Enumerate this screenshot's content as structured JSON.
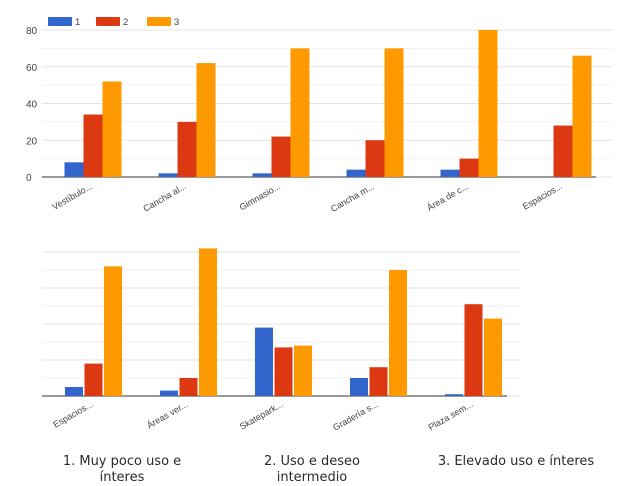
{
  "chart_data": [
    {
      "type": "bar",
      "categories": [
        "Vestíbulo...",
        "Cancha al...",
        "Gimnasio...",
        "Cancha m...",
        "Área de c...",
        "Espacios..."
      ],
      "series": [
        {
          "name": "1",
          "color": "#3366cc",
          "values": [
            8,
            2,
            2,
            4,
            4,
            0
          ]
        },
        {
          "name": "2",
          "color": "#dc3912",
          "values": [
            34,
            30,
            22,
            20,
            10,
            28
          ]
        },
        {
          "name": "3",
          "color": "#ff9900",
          "values": [
            52,
            62,
            70,
            70,
            80,
            66
          ]
        }
      ],
      "ylim": [
        0,
        80
      ],
      "yticks": [
        0,
        20,
        40,
        60,
        80
      ],
      "grid": true,
      "legend": "top-left"
    },
    {
      "type": "bar",
      "categories": [
        "Espacios...",
        "Áreas ver...",
        "Skatepark...",
        "Gradería s...",
        "Plaza sem..."
      ],
      "series": [
        {
          "name": "1",
          "color": "#3366cc",
          "values": [
            5,
            3,
            38,
            10,
            1
          ]
        },
        {
          "name": "2",
          "color": "#dc3912",
          "values": [
            18,
            10,
            27,
            16,
            51
          ]
        },
        {
          "name": "3",
          "color": "#ff9900",
          "values": [
            72,
            82,
            28,
            70,
            43
          ]
        }
      ],
      "ylim": [
        0,
        80
      ],
      "grid": true,
      "legend": "none"
    }
  ],
  "captions": [
    "1. Muy poco uso e ínteres",
    "2. Uso e deseo intermedio",
    "3. Elevado uso e ínteres"
  ]
}
